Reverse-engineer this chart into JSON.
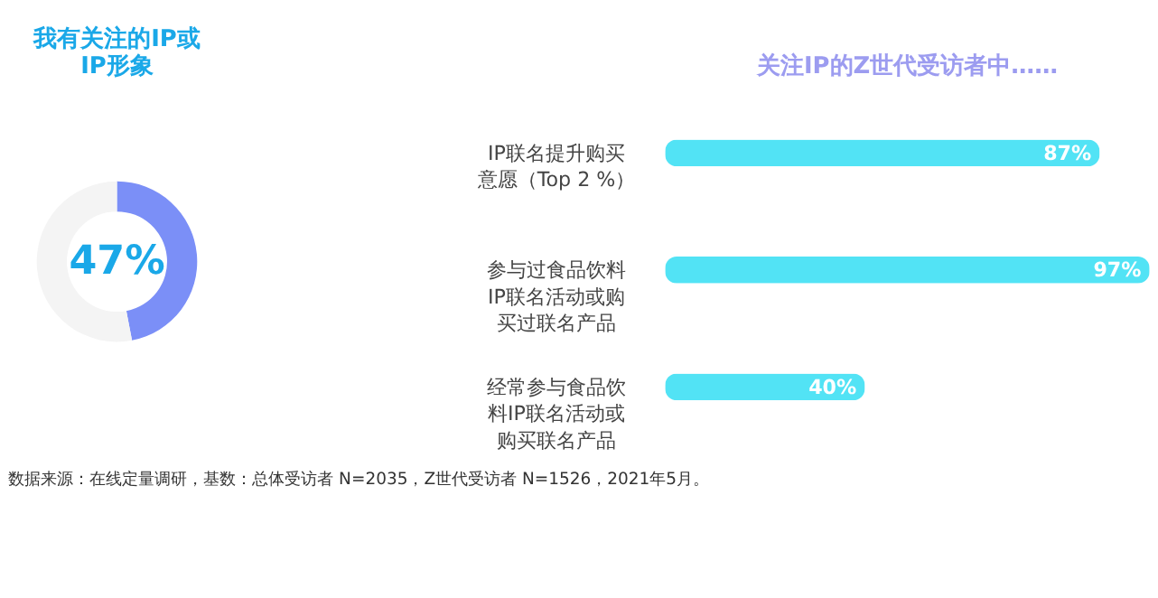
{
  "chart_data": [
    {
      "type": "donut",
      "title": "我有关注的IP或IP形象",
      "categories": [
        null,
        null
      ],
      "values": [
        47,
        53
      ],
      "colors": [
        "#7b8ff7",
        "#f4f4f4"
      ],
      "value_labels": [
        "47%",
        null
      ]
    },
    {
      "type": "bar",
      "orientation": "horizontal",
      "title": "关注IP的Z世代受访者中……",
      "categories": [
        "IP联名提升购买意愿（Top 2 %）",
        "参与过食品饮料IP联名活动或购买过联名产品",
        "经常参与食品饮料IP联名活动或购买联名产品"
      ],
      "values": [
        87,
        97,
        40
      ],
      "color": "#52e3f5",
      "tick_labels": false,
      "value_labels": [
        "87%",
        "97%",
        "40%"
      ],
      "annotations": [
        "数据来源：在线定量调研，基数：总体受访者 N=2035，Z世代受访者 N=1526，2021年5月。"
      ]
    }
  ]
}
